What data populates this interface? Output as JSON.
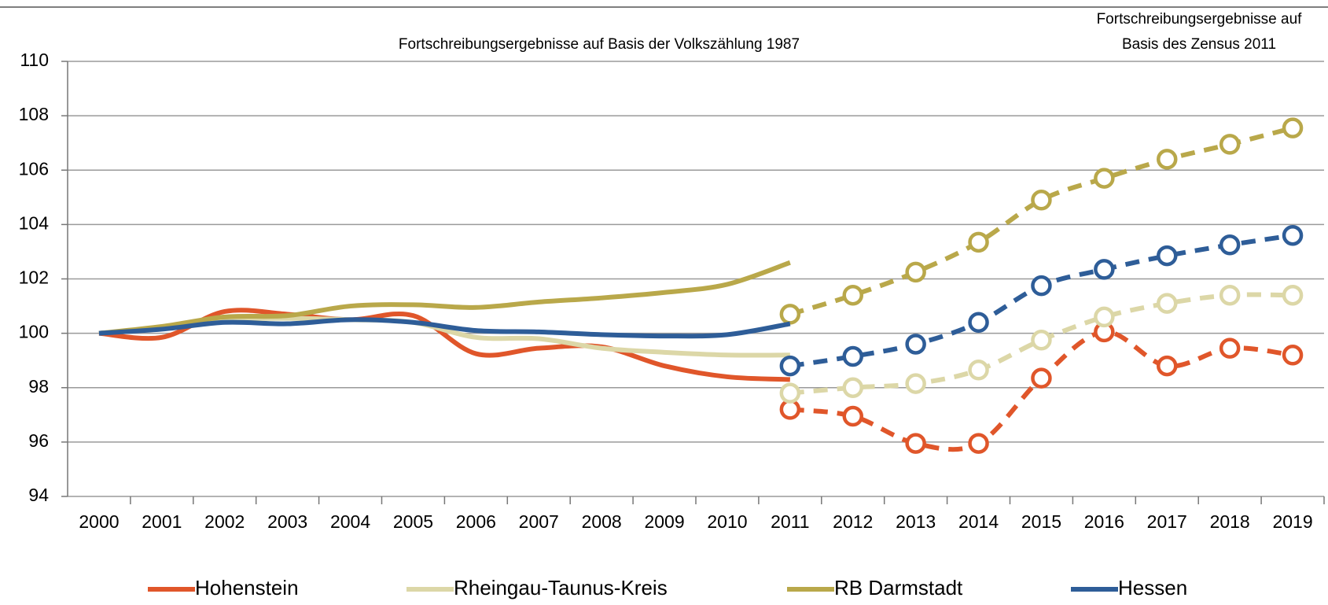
{
  "chart_data": {
    "type": "line",
    "annotations": [
      "Fortschreibungsergebnisse auf Basis der Volkszählung 1987",
      "Fortschreibungsergebnisse auf",
      "Basis des Zensus 2011"
    ],
    "categories": [
      "2000",
      "2001",
      "2002",
      "2003",
      "2004",
      "2005",
      "2006",
      "2007",
      "2008",
      "2009",
      "2010",
      "2011",
      "2012",
      "2013",
      "2014",
      "2015",
      "2016",
      "2017",
      "2018",
      "2019"
    ],
    "ylim": [
      94,
      110
    ],
    "yticks": [
      94,
      96,
      98,
      100,
      102,
      104,
      106,
      108,
      110
    ],
    "grid": true,
    "series": [
      {
        "name": "Hohenstein",
        "color": "#e0562a",
        "values": [
          100,
          99.85,
          100.8,
          100.7,
          100.5,
          100.65,
          99.25,
          99.45,
          99.5,
          98.8,
          98.4,
          98.3,
          null,
          null,
          null,
          null,
          null,
          null,
          null,
          null
        ],
        "zensus_values": [
          null,
          null,
          null,
          null,
          null,
          null,
          null,
          null,
          null,
          null,
          null,
          97.2,
          96.95,
          95.95,
          95.95,
          98.35,
          100.05,
          98.8,
          99.45,
          99.2
        ]
      },
      {
        "name": "Rheingau-Taunus-Kreis",
        "color": "#dcd7a7",
        "values": [
          100,
          100.2,
          100.5,
          100.55,
          100.5,
          100.4,
          99.85,
          99.8,
          99.45,
          99.3,
          99.2,
          99.2,
          null,
          null,
          null,
          null,
          null,
          null,
          null,
          null
        ],
        "zensus_values": [
          null,
          null,
          null,
          null,
          null,
          null,
          null,
          null,
          null,
          null,
          null,
          97.8,
          98.0,
          98.15,
          98.65,
          99.75,
          100.6,
          101.1,
          101.4,
          101.4
        ]
      },
      {
        "name": "RB Darmstadt",
        "color": "#b9a84a",
        "values": [
          100,
          100.25,
          100.6,
          100.65,
          101.0,
          101.05,
          100.95,
          101.15,
          101.3,
          101.5,
          101.8,
          102.6,
          null,
          null,
          null,
          null,
          null,
          null,
          null,
          null
        ],
        "zensus_values": [
          null,
          null,
          null,
          null,
          null,
          null,
          null,
          null,
          null,
          null,
          null,
          100.7,
          101.4,
          102.25,
          103.35,
          104.9,
          105.7,
          106.4,
          106.95,
          107.55
        ]
      },
      {
        "name": "Hessen",
        "color": "#2e5d98",
        "values": [
          100,
          100.15,
          100.4,
          100.35,
          100.5,
          100.4,
          100.1,
          100.05,
          99.95,
          99.9,
          99.95,
          100.35,
          null,
          null,
          null,
          null,
          null,
          null,
          null,
          null
        ],
        "zensus_values": [
          null,
          null,
          null,
          null,
          null,
          null,
          null,
          null,
          null,
          null,
          null,
          98.8,
          99.15,
          99.6,
          100.4,
          101.75,
          102.35,
          102.85,
          103.25,
          103.6
        ]
      }
    ]
  }
}
